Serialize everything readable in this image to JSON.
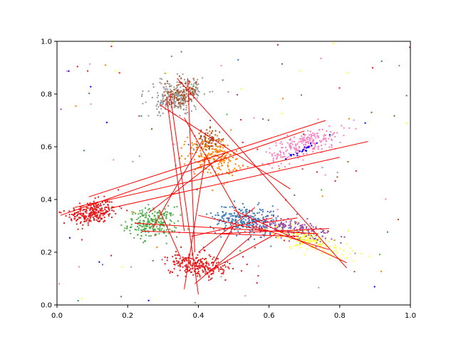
{
  "chart_data": {
    "type": "scatter",
    "title": "",
    "xlabel": "",
    "ylabel": "",
    "xlim": [
      0.0,
      1.0
    ],
    "ylim": [
      0.0,
      1.0
    ],
    "grid": false,
    "x_ticks": [
      "0.0",
      "0.2",
      "0.4",
      "0.6",
      "0.8",
      "1.0"
    ],
    "y_ticks": [
      "0.0",
      "0.2",
      "0.4",
      "0.6",
      "0.8",
      "1.0"
    ],
    "clusters": [
      {
        "color": "#e41a1c",
        "center": [
          0.1,
          0.35
        ],
        "spread": [
          0.035,
          0.022
        ],
        "angle": 0.25,
        "count": 260
      },
      {
        "color": "#4daf4a",
        "center": [
          0.27,
          0.31
        ],
        "spread": [
          0.035,
          0.028
        ],
        "angle": 0.1,
        "count": 240
      },
      {
        "color": "#e41a1c",
        "center": [
          0.4,
          0.15
        ],
        "spread": [
          0.02,
          0.045
        ],
        "angle": 1.4,
        "count": 230
      },
      {
        "color": "#999999",
        "center": [
          0.34,
          0.79
        ],
        "spread": [
          0.03,
          0.04
        ],
        "angle": -1.1,
        "count": 260
      },
      {
        "color": "#a65628",
        "center": [
          0.35,
          0.8
        ],
        "spread": [
          0.025,
          0.03
        ],
        "angle": -1.0,
        "count": 110
      },
      {
        "color": "#ff7f00",
        "center": [
          0.44,
          0.57
        ],
        "spread": [
          0.033,
          0.04
        ],
        "angle": 0.9,
        "count": 240
      },
      {
        "color": "#a65628",
        "center": [
          0.43,
          0.63
        ],
        "spread": [
          0.018,
          0.018
        ],
        "angle": 0.0,
        "count": 70
      },
      {
        "color": "#377eb8",
        "center": [
          0.53,
          0.32
        ],
        "spread": [
          0.045,
          0.028
        ],
        "angle": -0.2,
        "count": 280
      },
      {
        "color": "#984ea3",
        "center": [
          0.66,
          0.29
        ],
        "spread": [
          0.06,
          0.02
        ],
        "angle": -0.25,
        "count": 230
      },
      {
        "color": "#ffff33",
        "center": [
          0.72,
          0.24
        ],
        "spread": [
          0.06,
          0.018
        ],
        "angle": -0.45,
        "count": 160
      },
      {
        "color": "#f781bf",
        "center": [
          0.7,
          0.61
        ],
        "spread": [
          0.06,
          0.022
        ],
        "angle": 0.5,
        "count": 230
      },
      {
        "color": "#0000ff",
        "center": [
          0.69,
          0.585
        ],
        "spread": [
          0.028,
          0.004
        ],
        "angle": 0.55,
        "count": 22
      }
    ],
    "noise": {
      "count": 140,
      "x_range": [
        0.0,
        1.0
      ],
      "y_range": [
        0.0,
        1.0
      ]
    },
    "connections": [
      {
        "from": [
          0.01,
          0.34
        ],
        "to": [
          0.7,
          0.66
        ]
      },
      {
        "from": [
          0.05,
          0.37
        ],
        "to": [
          0.88,
          0.62
        ]
      },
      {
        "from": [
          0.09,
          0.41
        ],
        "to": [
          0.76,
          0.7
        ]
      },
      {
        "from": [
          0.16,
          0.37
        ],
        "to": [
          0.8,
          0.56
        ]
      },
      {
        "from": [
          0.32,
          0.8
        ],
        "to": [
          0.4,
          0.04
        ]
      },
      {
        "from": [
          0.31,
          0.79
        ],
        "to": [
          0.36,
          0.28
        ]
      },
      {
        "from": [
          0.37,
          0.86
        ],
        "to": [
          0.39,
          0.2
        ]
      },
      {
        "from": [
          0.34,
          0.86
        ],
        "to": [
          0.82,
          0.14
        ]
      },
      {
        "from": [
          0.29,
          0.76
        ],
        "to": [
          0.66,
          0.44
        ]
      },
      {
        "from": [
          0.36,
          0.71
        ],
        "to": [
          0.52,
          0.33
        ]
      },
      {
        "from": [
          0.41,
          0.62
        ],
        "to": [
          0.27,
          0.29
        ]
      },
      {
        "from": [
          0.48,
          0.58
        ],
        "to": [
          0.26,
          0.35
        ]
      },
      {
        "from": [
          0.42,
          0.56
        ],
        "to": [
          0.36,
          0.06
        ]
      },
      {
        "from": [
          0.22,
          0.31
        ],
        "to": [
          0.74,
          0.27
        ]
      },
      {
        "from": [
          0.24,
          0.28
        ],
        "to": [
          0.68,
          0.26
        ]
      },
      {
        "from": [
          0.29,
          0.36
        ],
        "to": [
          0.35,
          0.18
        ]
      },
      {
        "from": [
          0.4,
          0.2
        ],
        "to": [
          0.56,
          0.37
        ]
      },
      {
        "from": [
          0.44,
          0.15
        ],
        "to": [
          0.5,
          0.3
        ]
      },
      {
        "from": [
          0.43,
          0.13
        ],
        "to": [
          0.62,
          0.27
        ]
      },
      {
        "from": [
          0.39,
          0.08
        ],
        "to": [
          0.55,
          0.26
        ]
      },
      {
        "from": [
          0.45,
          0.27
        ],
        "to": [
          0.77,
          0.29
        ]
      },
      {
        "from": [
          0.5,
          0.36
        ],
        "to": [
          0.82,
          0.16
        ]
      },
      {
        "from": [
          0.55,
          0.3
        ],
        "to": [
          0.77,
          0.21
        ]
      },
      {
        "from": [
          0.58,
          0.31
        ],
        "to": [
          0.68,
          0.33
        ]
      },
      {
        "from": [
          0.61,
          0.33
        ],
        "to": [
          0.38,
          0.26
        ]
      },
      {
        "from": [
          0.59,
          0.28
        ],
        "to": [
          0.4,
          0.34
        ]
      }
    ],
    "connection_color": "#ff0000"
  }
}
